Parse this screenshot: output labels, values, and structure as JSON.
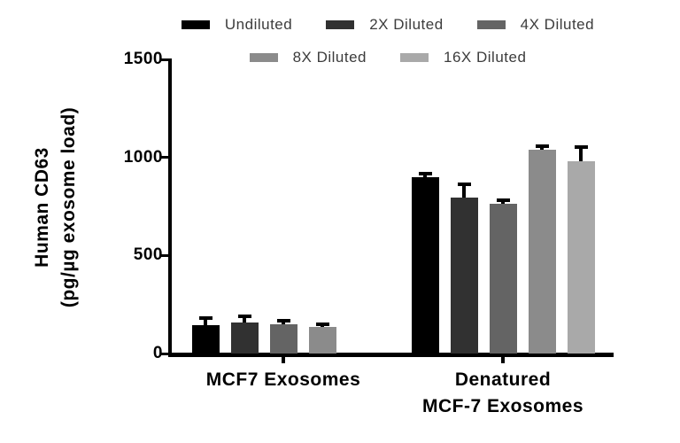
{
  "figure": {
    "background": "#ffffff",
    "text_color": "#000000",
    "legend_text_color": "#3c3c3c"
  },
  "chart_data": {
    "type": "bar",
    "title": "",
    "ylabel_lines": [
      "Human CD63",
      "(pg/µg exosome load)"
    ],
    "xlabel": "",
    "ylim": [
      0,
      1500
    ],
    "yticks": [
      0,
      500,
      1000,
      1500
    ],
    "grid": "off",
    "legend_position": "top",
    "error_bars": "upper",
    "series": [
      {
        "name": "Undiluted",
        "color": "#000000"
      },
      {
        "name": "2X Diluted",
        "color": "#313131"
      },
      {
        "name": "4X Diluted",
        "color": "#646464"
      },
      {
        "name": "8X Diluted",
        "color": "#8b8b8b"
      },
      {
        "name": "16X Diluted",
        "color": "#a9a9a9"
      }
    ],
    "groups": [
      {
        "label_lines": [
          "MCF7 Exosomes"
        ],
        "values": [
          145,
          160,
          150,
          135,
          null
        ],
        "errors": [
          35,
          28,
          15,
          12,
          null
        ]
      },
      {
        "label_lines": [
          "Denatured",
          "MCF-7 Exosomes"
        ],
        "values": [
          900,
          795,
          765,
          1040,
          980
        ],
        "errors": [
          18,
          70,
          18,
          18,
          73
        ]
      }
    ]
  }
}
